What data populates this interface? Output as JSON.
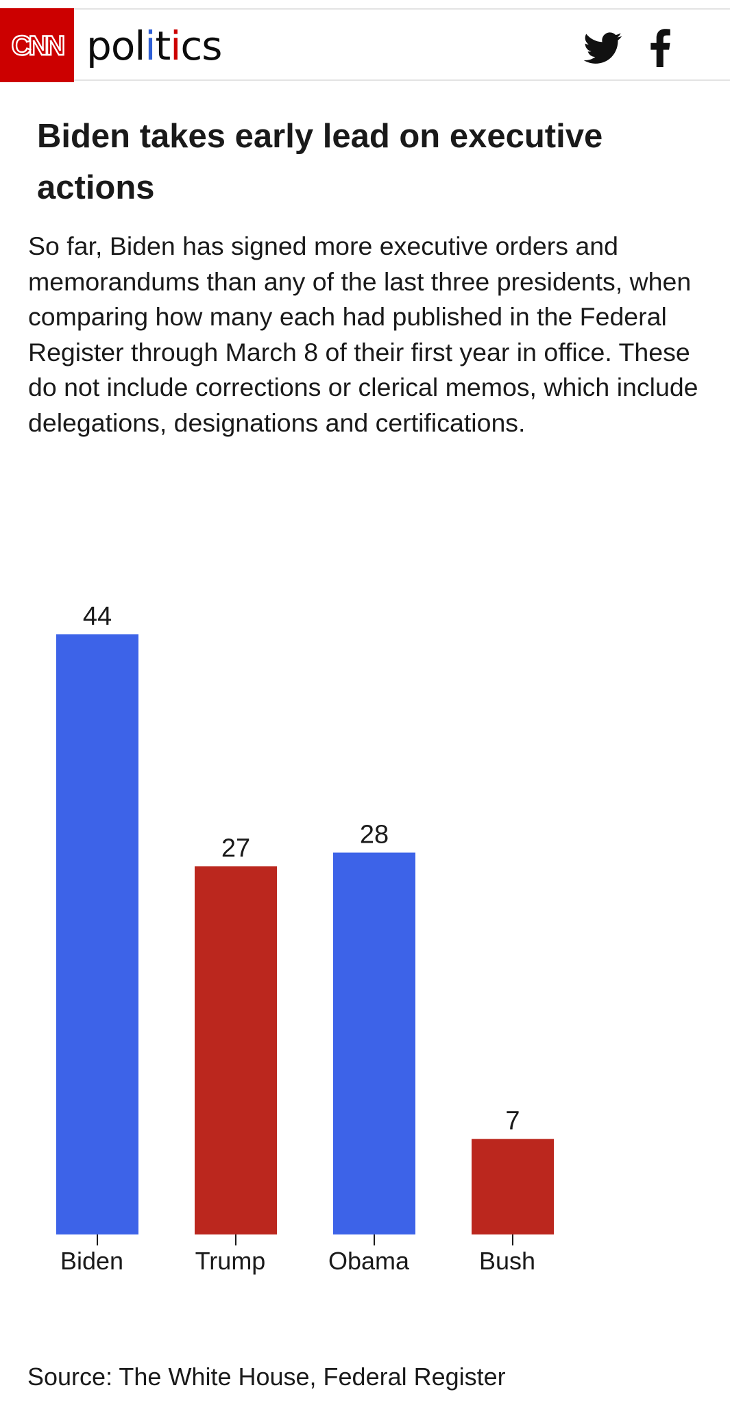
{
  "header": {
    "logo": "CNN",
    "section_parts": [
      "pol",
      "i",
      "t",
      "i",
      "cs"
    ],
    "share_icons": [
      "twitter-icon",
      "facebook-icon"
    ]
  },
  "article": {
    "headline": "Biden takes early lead on executive actions",
    "dek": "So far, Biden has signed more executive orders and memorandums than any of the last three presidents, when comparing how many each had published in the Federal Register through March 8 of their first year in office. These do not include corrections or clerical memos, which include delegations, designations and certifications.",
    "source": "Source: The White House, Federal Register"
  },
  "colors": {
    "brand_red": "#cc0000",
    "democrat_blue": "#3d63e8",
    "republican_red": "#bb271e",
    "text": "#1a1a1a"
  },
  "chart_data": {
    "type": "bar",
    "categories": [
      "Biden",
      "Trump",
      "Obama",
      "Bush"
    ],
    "values": [
      44,
      27,
      28,
      7
    ],
    "bar_colors": [
      "#3d63e8",
      "#bb271e",
      "#3d63e8",
      "#bb271e"
    ],
    "data_labels": [
      "44",
      "27",
      "28",
      "7"
    ],
    "xlabel": "",
    "ylabel": "",
    "ylim": [
      0,
      44
    ],
    "grid": false,
    "legend": "none"
  }
}
